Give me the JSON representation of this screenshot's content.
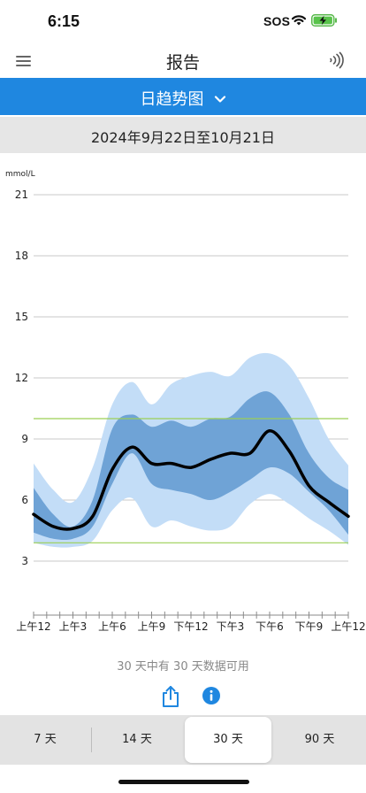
{
  "status": {
    "time": "6:15",
    "sos": "SOS"
  },
  "nav": {
    "title": "报告",
    "menu_icon": "menu-icon",
    "nfc_icon": "nfc-scan-icon"
  },
  "view_selector": {
    "label": "日趋势图",
    "icon": "chevron-down-icon"
  },
  "date_range": "2024年9月22日至10月21日",
  "chart_data": {
    "type": "area",
    "title": "",
    "unit": "mmol/L",
    "ylabel": "mmol/L",
    "ylim": [
      0,
      22.5
    ],
    "yticks": [
      3,
      6,
      9,
      12,
      15,
      18,
      21
    ],
    "xlim": [
      0,
      24
    ],
    "xticks": [
      {
        "x": 0,
        "label": "上午12"
      },
      {
        "x": 3,
        "label": "上午3"
      },
      {
        "x": 6,
        "label": "上午6"
      },
      {
        "x": 9,
        "label": "上午9"
      },
      {
        "x": 12,
        "label": "下午12"
      },
      {
        "x": 15,
        "label": "下午3"
      },
      {
        "x": 18,
        "label": "下午6"
      },
      {
        "x": 21,
        "label": "下午9"
      },
      {
        "x": 24,
        "label": "上午12"
      }
    ],
    "target_range": [
      3.9,
      10.0
    ],
    "x": [
      0,
      1.5,
      3,
      4.5,
      6,
      7.5,
      9,
      10.5,
      12,
      13.5,
      15,
      16.5,
      18,
      19.5,
      21,
      22.5,
      24
    ],
    "series": [
      {
        "values": [
          3.9,
          3.7,
          3.7,
          4.0,
          5.5,
          6.1,
          4.7,
          5.0,
          4.7,
          4.5,
          4.7,
          5.8,
          6.3,
          5.8,
          5.1,
          4.5,
          3.8
        ]
      },
      {
        "values": [
          4.4,
          4.1,
          4.1,
          4.7,
          6.8,
          8.3,
          6.8,
          6.5,
          6.3,
          6.0,
          6.4,
          7.0,
          7.6,
          7.3,
          6.4,
          5.5,
          4.3
        ]
      },
      {
        "values": [
          5.3,
          4.7,
          4.6,
          5.2,
          7.5,
          8.6,
          7.8,
          7.8,
          7.6,
          8.0,
          8.3,
          8.3,
          9.4,
          8.4,
          6.7,
          5.9,
          5.2
        ]
      },
      {
        "values": [
          6.6,
          5.3,
          4.7,
          6.0,
          9.5,
          10.2,
          9.6,
          9.9,
          9.6,
          10.0,
          10.1,
          11.0,
          11.3,
          10.2,
          8.3,
          7.1,
          6.5
        ]
      },
      {
        "values": [
          7.8,
          6.5,
          5.9,
          7.6,
          10.7,
          11.8,
          10.7,
          11.7,
          12.1,
          12.3,
          12.1,
          13.0,
          13.2,
          12.6,
          11.0,
          9.0,
          7.7
        ]
      }
    ],
    "colors": {
      "outer_band": "#c3ddf7",
      "inner_band": "#6fa3d6",
      "median": "#000000",
      "target_line": "#9ccf55",
      "grid": "#c9c9c9"
    }
  },
  "availability_text": "30 天中有 30 天数据可用",
  "actions": {
    "share_icon": "share-icon",
    "info_icon": "info-icon"
  },
  "range_tabs": [
    {
      "label": "7 天",
      "selected": false
    },
    {
      "label": "14 天",
      "selected": false
    },
    {
      "label": "30 天",
      "selected": true
    },
    {
      "label": "90 天",
      "selected": false
    }
  ]
}
